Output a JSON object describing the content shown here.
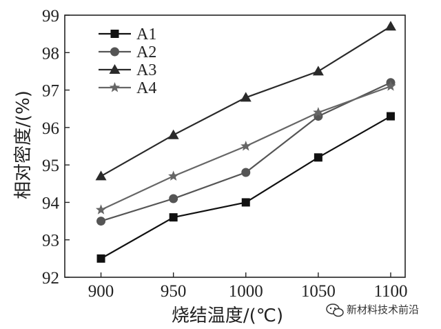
{
  "chart_data": {
    "type": "line",
    "title": "",
    "xlabel": "烧结温度/(℃)",
    "ylabel": "相对密度/(%)",
    "x": [
      900,
      950,
      1000,
      1050,
      1100
    ],
    "xlim": [
      875,
      1110
    ],
    "ylim": [
      92,
      99
    ],
    "x_ticks": [
      900,
      950,
      1000,
      1050,
      1100
    ],
    "y_ticks": [
      92,
      93,
      94,
      95,
      96,
      97,
      98,
      99
    ],
    "grid": false,
    "legend_position": "top-left",
    "series": [
      {
        "name": "A1",
        "marker": "square",
        "color": "#111111",
        "values": [
          92.5,
          93.6,
          94.0,
          95.2,
          96.3
        ]
      },
      {
        "name": "A2",
        "marker": "circle",
        "color": "#555555",
        "values": [
          93.5,
          94.1,
          94.8,
          96.3,
          97.2
        ]
      },
      {
        "name": "A3",
        "marker": "triangle",
        "color": "#2a2a2a",
        "values": [
          94.7,
          95.8,
          96.8,
          97.5,
          98.7
        ]
      },
      {
        "name": "A4",
        "marker": "star",
        "color": "#666666",
        "values": [
          93.8,
          94.7,
          95.5,
          96.4,
          97.1
        ]
      }
    ]
  },
  "watermark": {
    "text": "新材料技术前沿",
    "icon": "wechat-logo-icon"
  }
}
